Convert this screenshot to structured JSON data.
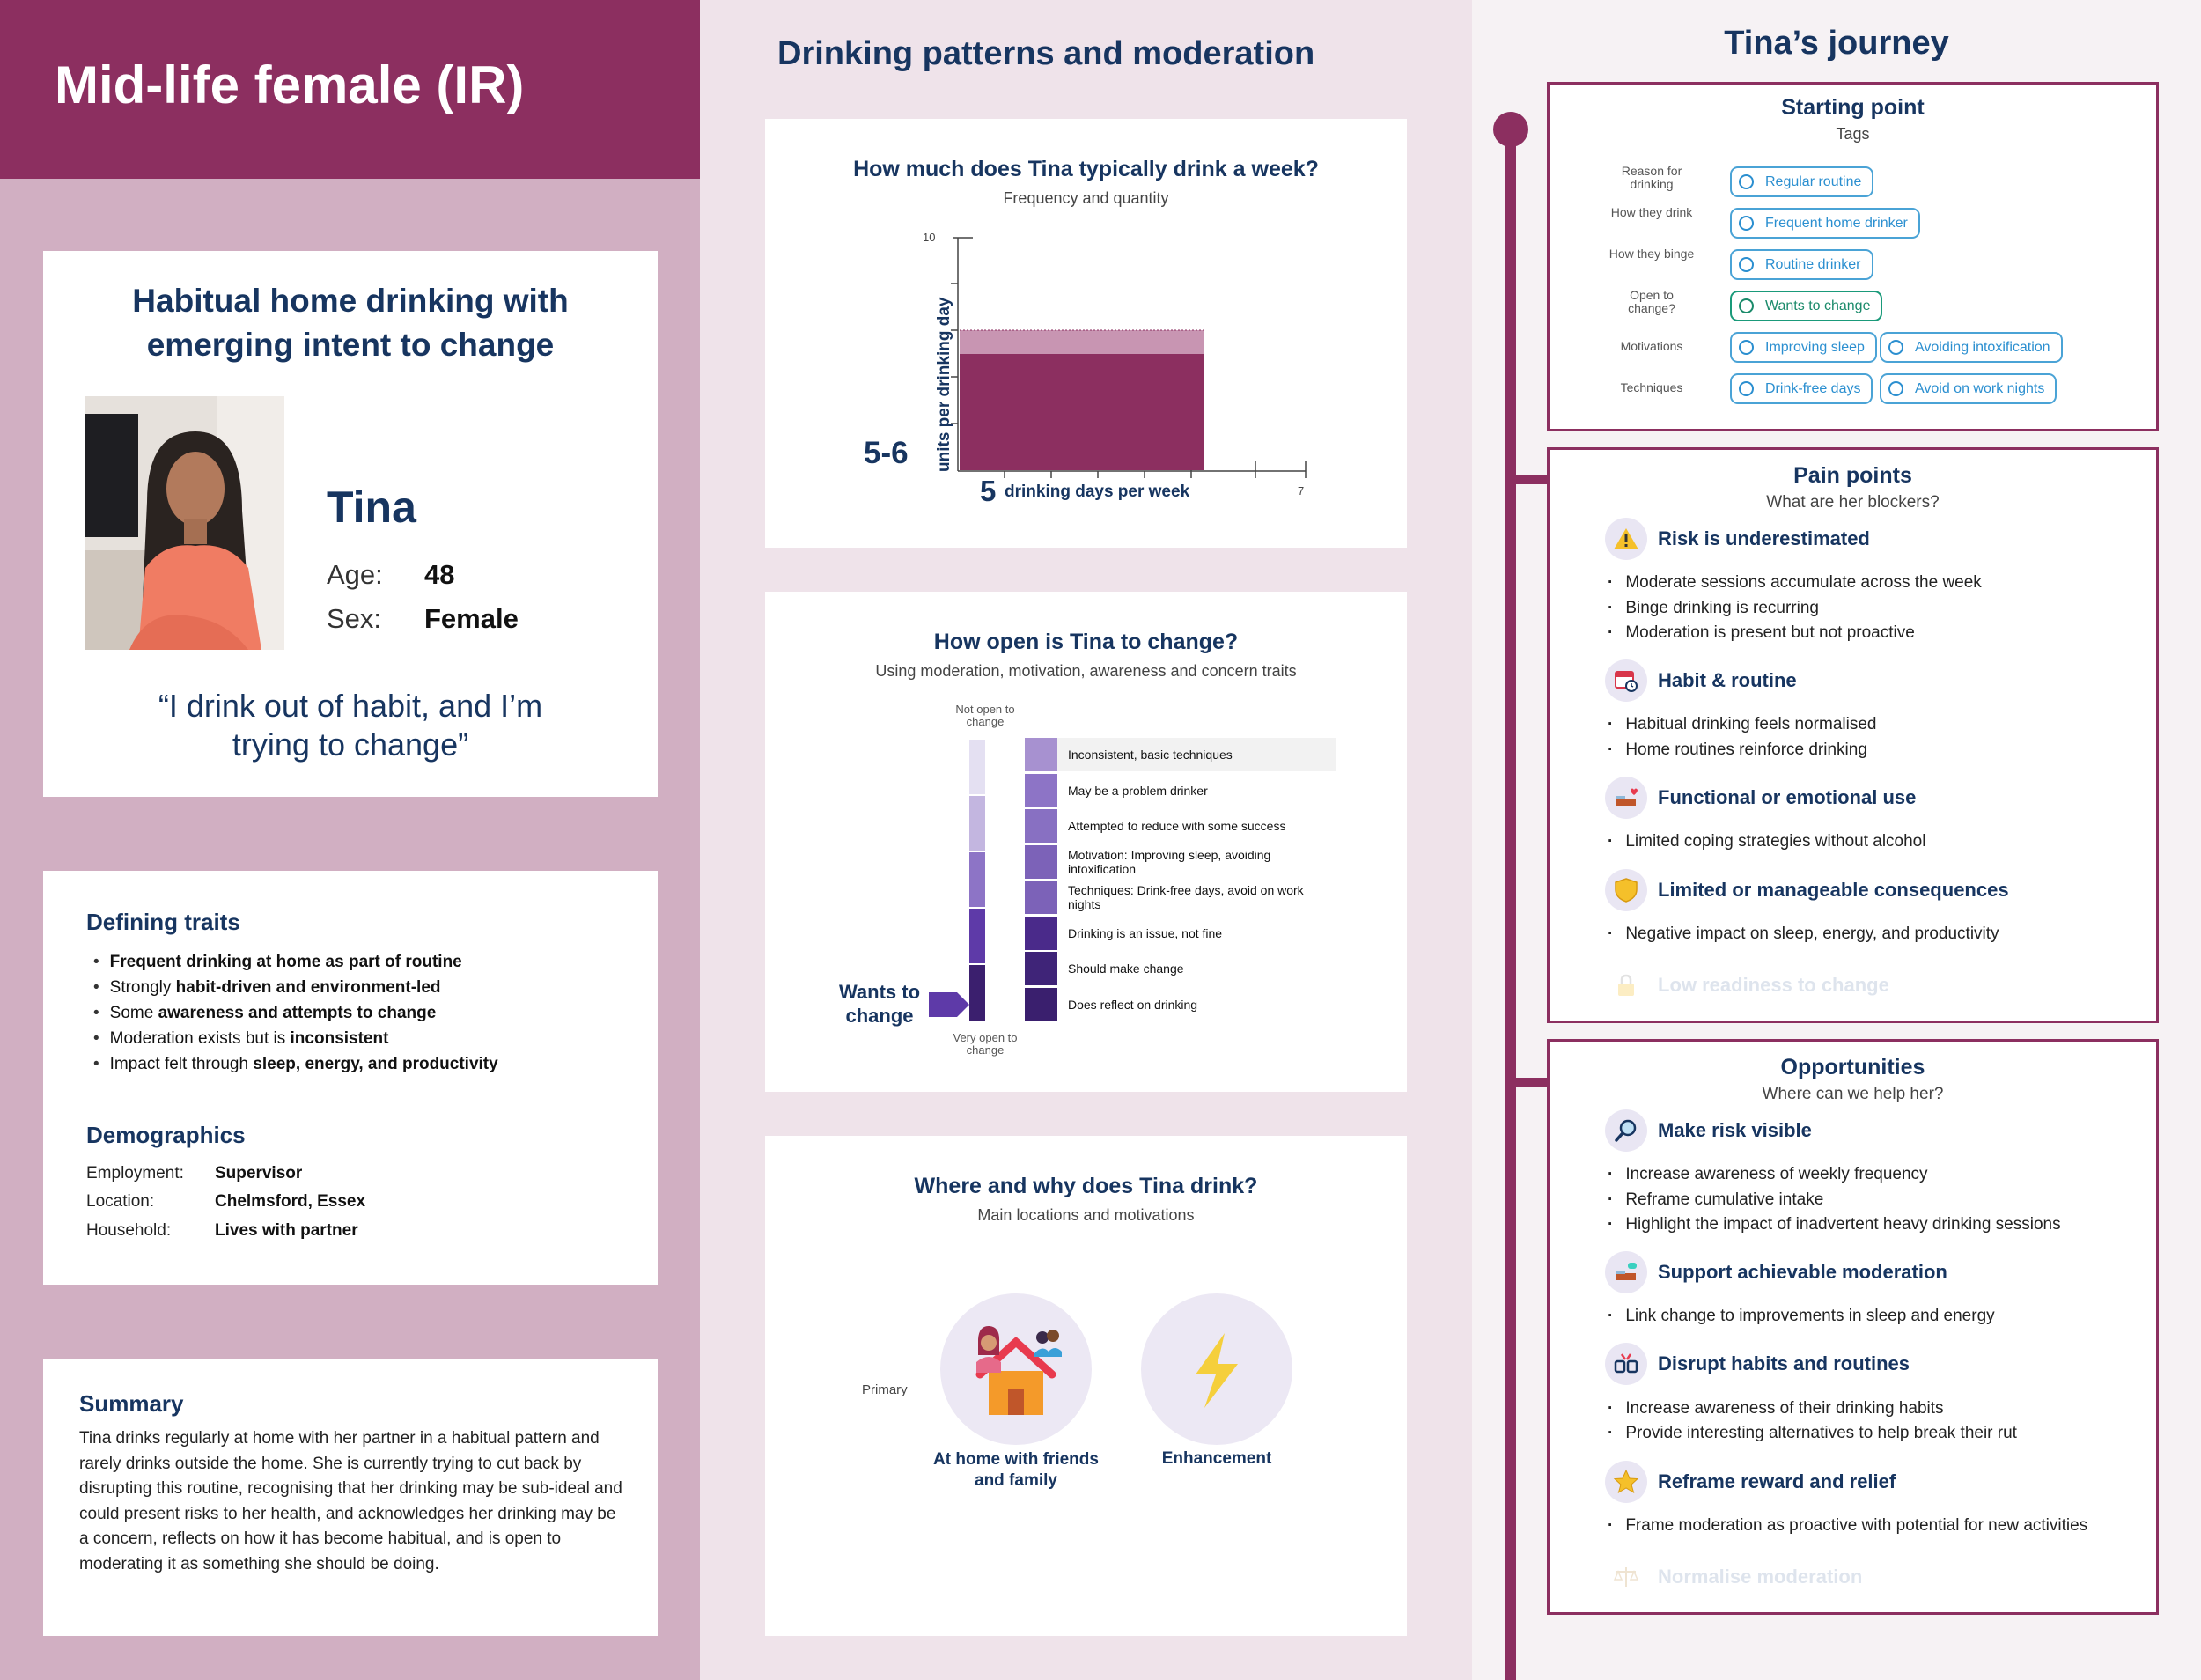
{
  "persona": {
    "title": "Mid-life female (IR)",
    "heading_line1": "Habitual home drinking with",
    "heading_line2": "emerging intent to change",
    "name": "Tina",
    "age_label": "Age:",
    "age": "48",
    "sex_label": "Sex:",
    "sex": "Female",
    "quote_line1": "“I drink out of habit, and I’m",
    "quote_line2": "trying to change”"
  },
  "traits": {
    "title": "Defining traits",
    "items": [
      [
        {
          "t": "Frequent drinking at home as part of routine",
          "b": true
        }
      ],
      [
        {
          "t": "Strongly ",
          "b": false
        },
        {
          "t": "habit-driven and environment-led",
          "b": true
        }
      ],
      [
        {
          "t": "Some ",
          "b": false
        },
        {
          "t": "awareness and attempts to change",
          "b": true
        }
      ],
      [
        {
          "t": "Moderation exists but is ",
          "b": false
        },
        {
          "t": "inconsistent",
          "b": true
        }
      ],
      [
        {
          "t": "Impact felt through ",
          "b": false
        },
        {
          "t": "sleep, energy, and productivity",
          "b": true
        }
      ]
    ]
  },
  "demographics": {
    "title": "Demographics",
    "employment_label": "Employment:",
    "employment": "Supervisor",
    "location_label": "Location:",
    "location": "Chelmsford, Essex",
    "household_label": "Household:",
    "household": "Lives with partner"
  },
  "summary": {
    "title": "Summary",
    "text": "Tina drinks regularly at home with her partner in a habitual pattern and rarely drinks outside the home. She is currently trying to cut back by disrupting this routine, recognising that her drinking may be sub-ideal and could present risks to her health, and acknowledges her drinking may be a concern, reflects on how it has become habitual, and is open to moderating it as something she should be doing."
  },
  "middle": {
    "title": "Drinking patterns and moderation",
    "weekly": {
      "title": "How much does Tina typically drink a week?",
      "subtitle": "Frequency and quantity",
      "y_axis_label": "units per drinking day",
      "y_max_label": "10",
      "x_max_label": "7",
      "units_value": "5-6",
      "days_value": "5",
      "days_label": "drinking days per week"
    },
    "openness": {
      "title": "How open is Tina to change?",
      "subtitle": "Using moderation, motivation, awareness and concern traits",
      "top_label": "Not open to change",
      "bottom_label": "Very open to change",
      "marker_label": "Wants to change",
      "ladder": [
        "Inconsistent, basic techniques",
        "May be a problem drinker",
        "Attempted to reduce with some success",
        "Motivation: Improving sleep, avoiding intoxification",
        "Techniques: Drink-free days, avoid on work nights",
        "Drinking is an issue, not fine",
        "Should make change",
        "Does reflect on drinking"
      ]
    },
    "where": {
      "title": "Where and why does Tina drink?",
      "subtitle": "Main locations and motivations",
      "row_label": "Primary",
      "location_label": "At home with friends and family",
      "motivation_label": "Enhancement"
    }
  },
  "journey": {
    "title": "Tina’s journey",
    "starting": {
      "title": "Starting point",
      "subtitle": "Tags",
      "rows": [
        {
          "label": "Reason for drinking",
          "tags": [
            "Regular routine"
          ]
        },
        {
          "label": "How they drink",
          "tags": [
            "Frequent home drinker"
          ]
        },
        {
          "label": "How they binge",
          "tags": [
            "Routine drinker"
          ]
        },
        {
          "label": "Open to change?",
          "tags": [
            "Wants to change"
          ]
        },
        {
          "label": "Motivations",
          "tags": [
            "Improving sleep",
            "Avoiding intoxification"
          ]
        },
        {
          "label": "Techniques",
          "tags": [
            "Drink-free days",
            "Avoid on work nights"
          ]
        }
      ]
    },
    "pain": {
      "title": "Pain points",
      "subtitle": "What are her blockers?",
      "h1": "Risk is underestimated",
      "b1": [
        "Moderate sessions accumulate across the week",
        "Binge drinking is recurring",
        "Moderation is present but not proactive"
      ],
      "h2": "Habit & routine",
      "b2": [
        "Habitual drinking feels normalised",
        "Home routines reinforce drinking"
      ],
      "h3": "Functional or emotional use",
      "b3": [
        "Limited coping strategies without alcohol"
      ],
      "h4": "Limited or manageable consequences",
      "b4": [
        "Negative impact on sleep, energy, and productivity"
      ],
      "h5": "Low readiness to change"
    },
    "opps": {
      "title": "Opportunities",
      "subtitle": "Where can we help her?",
      "h1": "Make risk visible",
      "b1": [
        "Increase awareness of weekly frequency",
        "Reframe cumulative intake",
        "Highlight the impact of inadvertent heavy drinking sessions"
      ],
      "h2": "Support achievable moderation",
      "b2": [
        "Link change to improvements in sleep and energy"
      ],
      "h3": "Disrupt habits and routines",
      "b3": [
        "Increase awareness of their drinking habits",
        "Provide interesting alternatives to help break their rut"
      ],
      "h4": "Reframe reward and relief",
      "b4": [
        "Frame moderation as proactive with potential for new activities"
      ],
      "h5": "Normalise moderation"
    }
  },
  "colors": {
    "plum": "#8c2f60",
    "navy": "#173560",
    "tag_blue": "#4aa3d6",
    "tag_green": "#1a9a7a"
  }
}
